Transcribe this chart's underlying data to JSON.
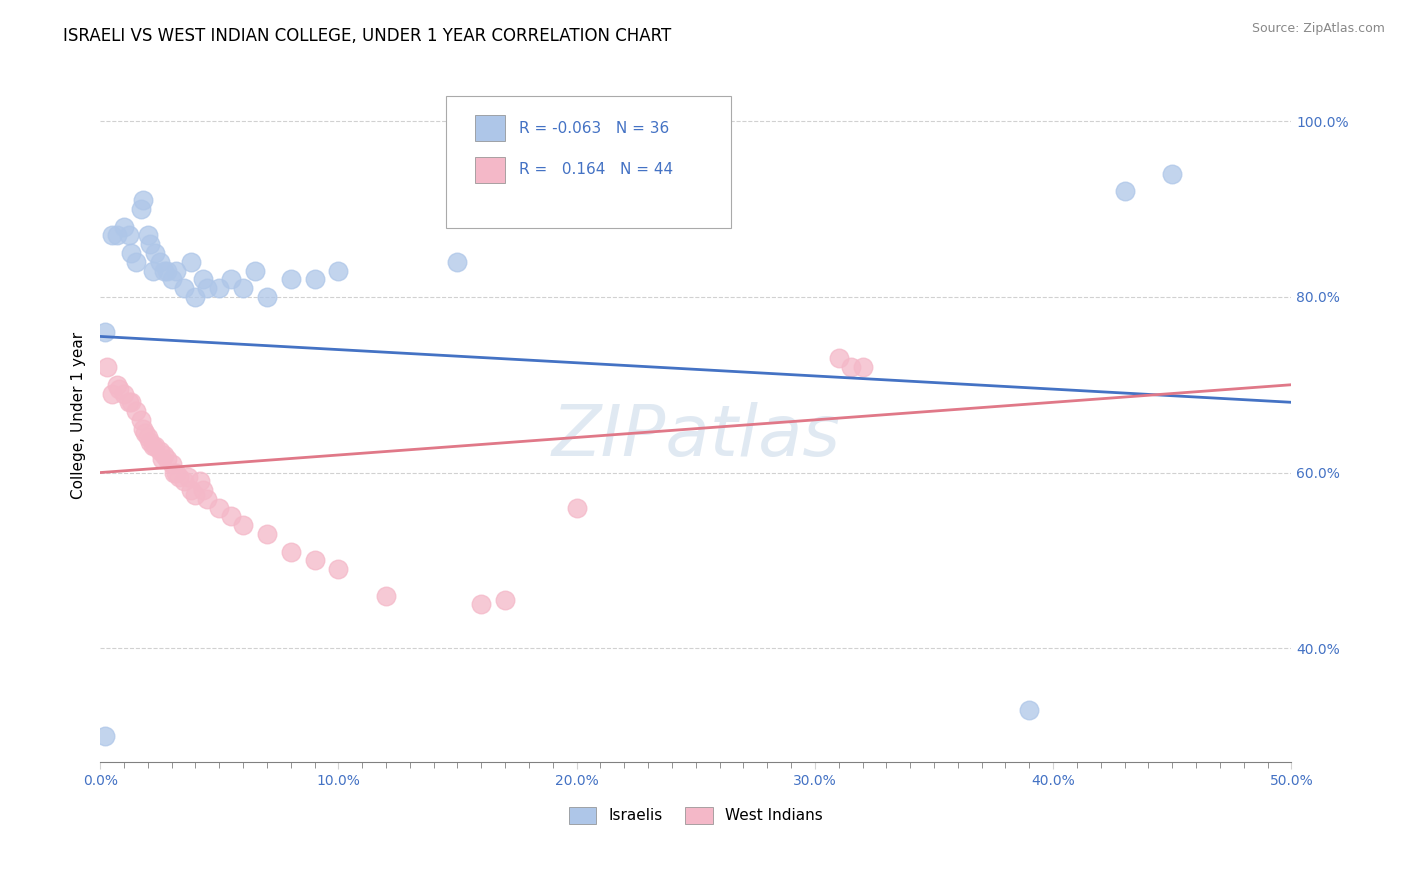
{
  "title": "ISRAELI VS WEST INDIAN COLLEGE, UNDER 1 YEAR CORRELATION CHART",
  "source": "Source: ZipAtlas.com",
  "ylabel": "College, Under 1 year",
  "xlim": [
    0.0,
    0.5
  ],
  "ylim": [
    0.27,
    1.06
  ],
  "xtick_labels": [
    "0.0%",
    "",
    "",
    "",
    "",
    "",
    "",
    "",
    "",
    "",
    "10.0%",
    "",
    "",
    "",
    "",
    "",
    "",
    "",
    "",
    "",
    "20.0%",
    "",
    "",
    "",
    "",
    "",
    "",
    "",
    "",
    "",
    "30.0%",
    "",
    "",
    "",
    "",
    "",
    "",
    "",
    "",
    "",
    "40.0%",
    "",
    "",
    "",
    "",
    "",
    "",
    "",
    "",
    "",
    "50.0%"
  ],
  "xtick_vals": [
    0.0,
    0.01,
    0.02,
    0.03,
    0.04,
    0.05,
    0.06,
    0.07,
    0.08,
    0.09,
    0.1,
    0.11,
    0.12,
    0.13,
    0.14,
    0.15,
    0.16,
    0.17,
    0.18,
    0.19,
    0.2,
    0.21,
    0.22,
    0.23,
    0.24,
    0.25,
    0.26,
    0.27,
    0.28,
    0.29,
    0.3,
    0.31,
    0.32,
    0.33,
    0.34,
    0.35,
    0.36,
    0.37,
    0.38,
    0.39,
    0.4,
    0.41,
    0.42,
    0.43,
    0.44,
    0.45,
    0.46,
    0.47,
    0.48,
    0.49,
    0.5
  ],
  "ytick_labels": [
    "40.0%",
    "60.0%",
    "80.0%",
    "100.0%"
  ],
  "ytick_vals": [
    0.4,
    0.6,
    0.8,
    1.0
  ],
  "legend_r_israeli": "-0.063",
  "legend_n_israeli": "36",
  "legend_r_west_indian": "0.164",
  "legend_n_west_indian": "44",
  "israeli_color": "#aec6e8",
  "west_indian_color": "#f4b8c8",
  "israeli_line_color": "#4472c4",
  "west_indian_line_color": "#e07888",
  "watermark": "ZIPatlas",
  "israeli_x": [
    0.002,
    0.005,
    0.007,
    0.01,
    0.012,
    0.013,
    0.015,
    0.017,
    0.018,
    0.02,
    0.021,
    0.022,
    0.023,
    0.025,
    0.027,
    0.028,
    0.03,
    0.032,
    0.035,
    0.038,
    0.04,
    0.043,
    0.045,
    0.05,
    0.055,
    0.06,
    0.065,
    0.07,
    0.08,
    0.09,
    0.1,
    0.15,
    0.39,
    0.43,
    0.45,
    0.002
  ],
  "israeli_y": [
    0.76,
    0.87,
    0.87,
    0.88,
    0.87,
    0.85,
    0.84,
    0.9,
    0.91,
    0.87,
    0.86,
    0.83,
    0.85,
    0.84,
    0.83,
    0.83,
    0.82,
    0.83,
    0.81,
    0.84,
    0.8,
    0.82,
    0.81,
    0.81,
    0.82,
    0.81,
    0.83,
    0.8,
    0.82,
    0.82,
    0.83,
    0.84,
    0.33,
    0.92,
    0.94,
    0.3
  ],
  "west_indian_x": [
    0.003,
    0.005,
    0.007,
    0.008,
    0.01,
    0.012,
    0.013,
    0.015,
    0.017,
    0.018,
    0.019,
    0.02,
    0.021,
    0.022,
    0.023,
    0.025,
    0.026,
    0.027,
    0.028,
    0.03,
    0.031,
    0.032,
    0.033,
    0.035,
    0.037,
    0.038,
    0.04,
    0.042,
    0.043,
    0.045,
    0.05,
    0.055,
    0.06,
    0.07,
    0.08,
    0.09,
    0.1,
    0.12,
    0.16,
    0.17,
    0.2,
    0.31,
    0.315,
    0.32
  ],
  "west_indian_y": [
    0.72,
    0.69,
    0.7,
    0.695,
    0.69,
    0.68,
    0.68,
    0.67,
    0.66,
    0.65,
    0.645,
    0.64,
    0.635,
    0.63,
    0.63,
    0.625,
    0.615,
    0.62,
    0.615,
    0.61,
    0.6,
    0.6,
    0.595,
    0.59,
    0.595,
    0.58,
    0.575,
    0.59,
    0.58,
    0.57,
    0.56,
    0.55,
    0.54,
    0.53,
    0.51,
    0.5,
    0.49,
    0.46,
    0.45,
    0.455,
    0.56,
    0.73,
    0.72,
    0.72
  ],
  "background_color": "#ffffff",
  "grid_color": "#cccccc",
  "title_fontsize": 12,
  "axis_fontsize": 11,
  "tick_fontsize": 10,
  "israeli_line_y0": 0.755,
  "israeli_line_y1": 0.68,
  "west_indian_line_y0": 0.6,
  "west_indian_line_y1": 0.7
}
